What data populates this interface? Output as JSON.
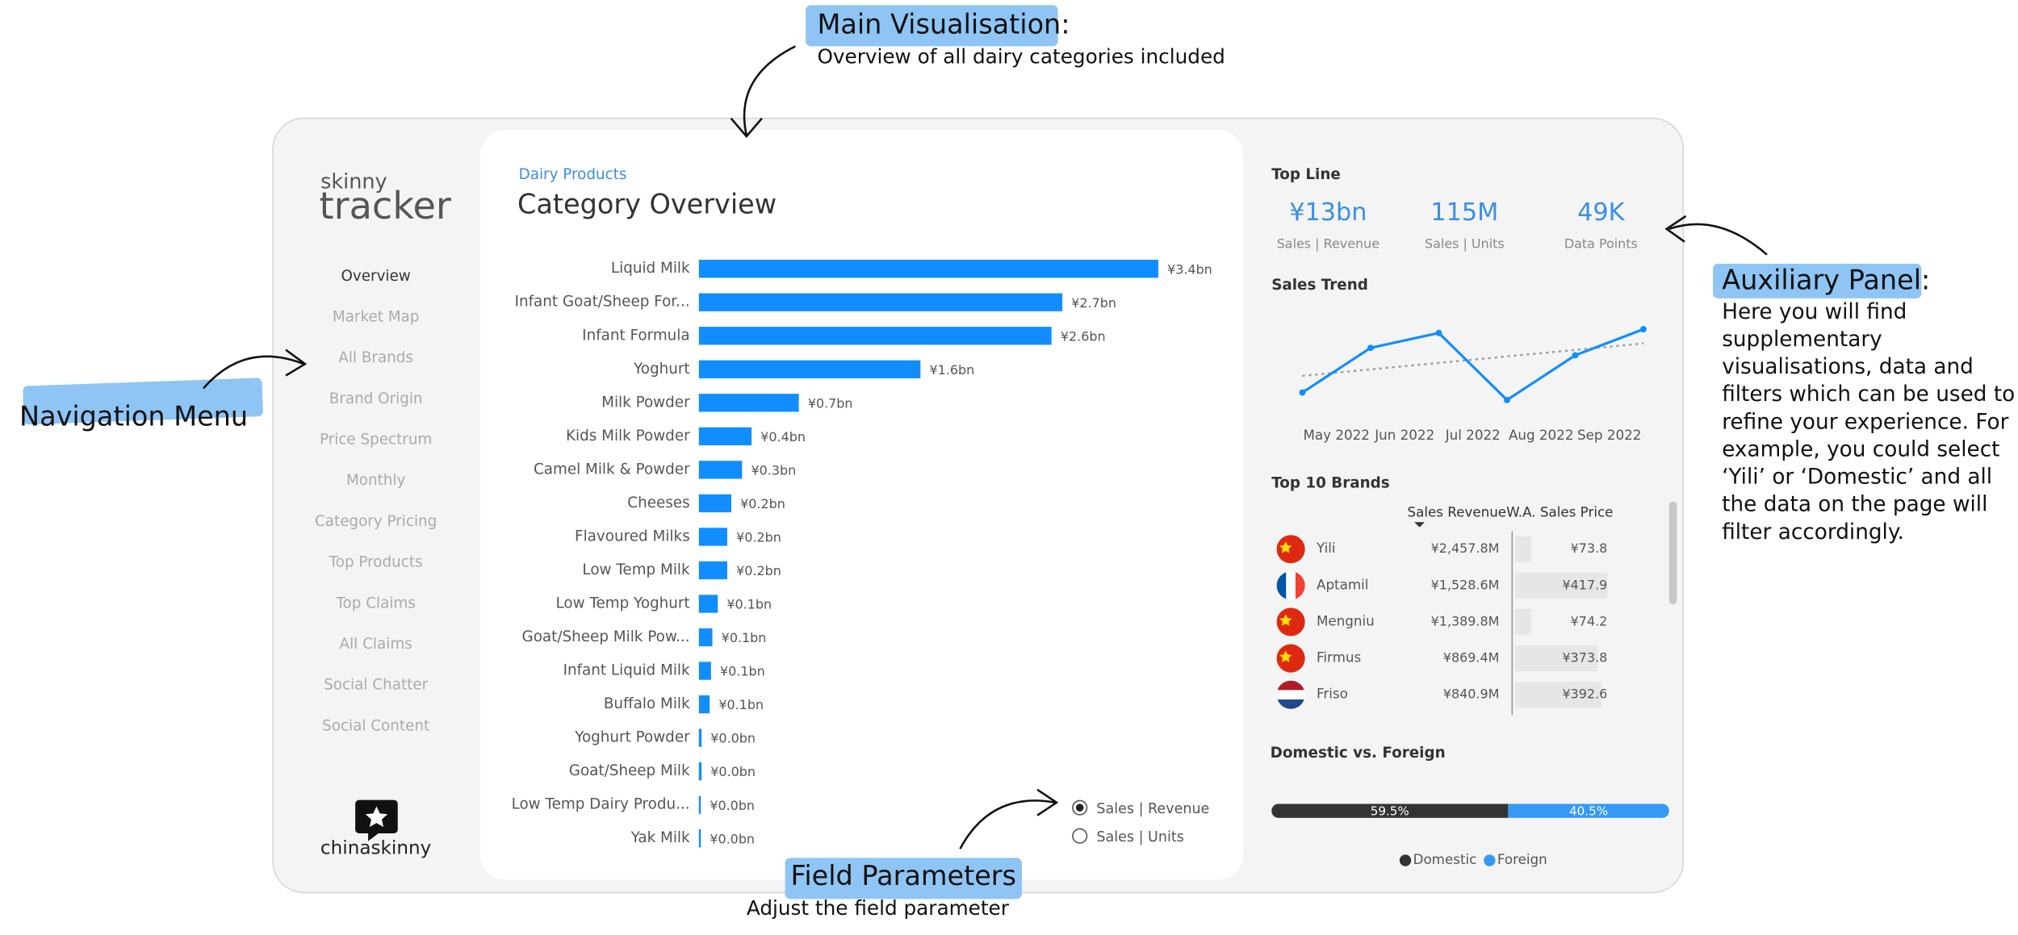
{
  "annotations": {
    "main": {
      "title": "Main Visualisation:",
      "text": "Overview of all dairy categories included"
    },
    "auxiliary": {
      "title": "Auxiliary Panel:",
      "lines": [
        "Here you will find",
        "supplementary",
        "visualisations, data and",
        "filters which can be used to",
        "refine your experience. For",
        "example, you could select",
        "‘Yili’ or ‘Domestic’ and all",
        "the data on the page will",
        "filter accordingly."
      ]
    },
    "navigation": "Navigation Menu",
    "field": {
      "title": "Field Parameters",
      "text": "Adjust the field parameter"
    }
  },
  "logo": {
    "top": "skinny",
    "bottom": "tracker",
    "brand": "chinaskinny"
  },
  "nav": [
    "Overview",
    "Market Map",
    "All Brands",
    "Brand Origin",
    "Price Spectrum",
    "Monthly",
    "Category Pricing",
    "Top Products",
    "Top Claims",
    "All Claims",
    "Social Chatter",
    "Social Content"
  ],
  "topline": {
    "title": "Top Line",
    "kpis": [
      {
        "value": "¥13bn",
        "label": "Sales | Revenue"
      },
      {
        "value": "115M",
        "label": "Sales | Units"
      },
      {
        "value": "49K",
        "label": "Data Points"
      }
    ]
  },
  "brands": {
    "title": "Top 10 Brands",
    "columns": [
      "Sales Revenue",
      "W.A. Sales Price"
    ],
    "rows": [
      {
        "name": "Yili",
        "revenue": 2457.8,
        "revenue_label": "¥2,457.8M",
        "price": 73.8,
        "price_label": "¥73.8"
      },
      {
        "name": "Aptamil",
        "revenue": 1528.6,
        "revenue_label": "¥1,528.6M",
        "price": 417.9,
        "price_label": "¥417.9"
      },
      {
        "name": "Mengniu",
        "revenue": 1389.8,
        "revenue_label": "¥1,389.8M",
        "price": 74.2,
        "price_label": "¥74.2"
      },
      {
        "name": "Firmus",
        "revenue": 869.4,
        "revenue_label": "¥869.4M",
        "price": 373.8,
        "price_label": "¥373.8"
      },
      {
        "name": "Friso",
        "revenue": 840.9,
        "revenue_label": "¥840.9M",
        "price": 392.6,
        "price_label": "¥392.6"
      }
    ]
  },
  "field_parameters": {
    "options": [
      "Sales | Revenue",
      "Sales | Units"
    ],
    "selected": 0
  },
  "chart_data": [
    {
      "type": "bar",
      "subtitle": "Dairy Products",
      "title": "Category Overview",
      "color": "#118dff",
      "categories": [
        "Liquid Milk",
        "Infant Goat/Sheep For...",
        "Infant Formula",
        "Yoghurt",
        "Milk Powder",
        "Kids Milk Powder",
        "Camel Milk & Powder",
        "Cheeses",
        "Flavoured Milks",
        "Low Temp Milk",
        "Low Temp Yoghurt",
        "Goat/Sheep Milk Pow...",
        "Infant Liquid Milk",
        "Buffalo Milk",
        "Yoghurt Powder",
        "Goat/Sheep Milk",
        "Low Temp Dairy Produ...",
        "Yak Milk"
      ],
      "values": [
        3.4,
        2.69,
        2.61,
        1.64,
        0.74,
        0.39,
        0.32,
        0.24,
        0.21,
        0.21,
        0.14,
        0.1,
        0.09,
        0.08,
        0.02,
        0.02,
        0.01,
        0.01
      ],
      "value_labels": [
        "¥3.4bn",
        "¥2.7bn",
        "¥2.6bn",
        "¥1.6bn",
        "¥0.7bn",
        "¥0.4bn",
        "¥0.3bn",
        "¥0.2bn",
        "¥0.2bn",
        "¥0.2bn",
        "¥0.1bn",
        "¥0.1bn",
        "¥0.1bn",
        "¥0.1bn",
        "¥0.0bn",
        "¥0.0bn",
        "¥0.0bn",
        "¥0.0bn"
      ]
    },
    {
      "type": "line",
      "title": "Sales Trend",
      "color": "#118dff",
      "trendline": true,
      "categories": [
        "May 2022",
        "Jun 2022",
        "Jul 2022",
        "Aug 2022",
        "Sep 2022",
        null
      ],
      "values": [
        1.8,
        2.4,
        2.6,
        1.7,
        2.3,
        2.65
      ]
    },
    {
      "type": "stacked_bar",
      "title": "Domestic vs. Foreign",
      "legend": "bottom",
      "series": [
        {
          "name": "Domestic",
          "color": "#333333",
          "values": [
            59.5
          ],
          "value_labels": [
            "59.5%"
          ]
        },
        {
          "name": "Foreign",
          "color": "#3599f5",
          "values": [
            40.5
          ],
          "value_labels": [
            "40.5%"
          ]
        }
      ]
    }
  ]
}
